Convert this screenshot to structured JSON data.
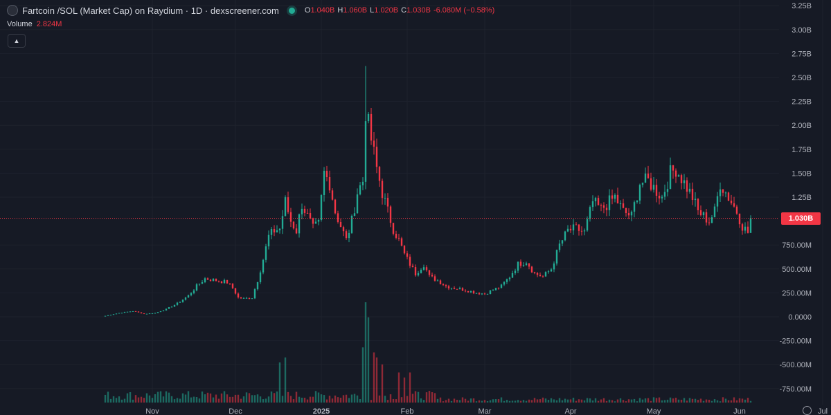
{
  "legend": {
    "title": "Fartcoin /SOL (Market Cap) on Raydium · 1D · dexscreener.com",
    "open_key": "O",
    "open": "1.040B",
    "high_key": "H",
    "high": "1.060B",
    "low_key": "L",
    "low": "1.020B",
    "close_key": "C",
    "close": "1.030B",
    "change": "-6.080M (−0.58%)"
  },
  "volume": {
    "label": "Volume",
    "value": "2.824M"
  },
  "collapse_icon": "chevron-up-icon",
  "last_price_label": "1.030B",
  "colors": {
    "up": "#22ab94",
    "down": "#f23645",
    "background": "#161a25",
    "axis_text": "#b2b5be",
    "grid": "#1e222d"
  },
  "chart_data": {
    "type": "candlestick",
    "y_tick_labels": [
      "3.25B",
      "3.00B",
      "2.75B",
      "2.50B",
      "2.25B",
      "2.00B",
      "1.75B",
      "1.50B",
      "1.25B",
      "1.030B",
      "750.00M",
      "500.00M",
      "250.00M",
      "0.0000",
      "-250.00M",
      "-500.00M",
      "-750.00M"
    ],
    "y_tick_values": [
      3.25,
      3.0,
      2.75,
      2.5,
      2.25,
      2.0,
      1.75,
      1.5,
      1.25,
      null,
      0.75,
      0.5,
      0.25,
      0,
      -0.25,
      -0.5,
      -0.75
    ],
    "x_tick_labels": [
      "Nov",
      "Dec",
      "2025",
      "Feb",
      "Mar",
      "Apr",
      "May",
      "Jun",
      "Jul"
    ],
    "x_tick_day_index": [
      17,
      47,
      78,
      109,
      137,
      168,
      198,
      229,
      259
    ],
    "ylim_billions": [
      -0.85,
      3.3
    ],
    "last_price": 1.03,
    "price_scale": "billions of USD market cap",
    "close_anchors_billions": [
      [
        0,
        0.01
      ],
      [
        5,
        0.04
      ],
      [
        10,
        0.06
      ],
      [
        14,
        0.03
      ],
      [
        18,
        0.04
      ],
      [
        22,
        0.08
      ],
      [
        26,
        0.14
      ],
      [
        30,
        0.22
      ],
      [
        33,
        0.32
      ],
      [
        36,
        0.4
      ],
      [
        40,
        0.38
      ],
      [
        44,
        0.36
      ],
      [
        46,
        0.3
      ],
      [
        48,
        0.2
      ],
      [
        50,
        0.19
      ],
      [
        53,
        0.2
      ],
      [
        55,
        0.38
      ],
      [
        57,
        0.6
      ],
      [
        59,
        0.84
      ],
      [
        61,
        0.9
      ],
      [
        63,
        0.92
      ],
      [
        65,
        1.2
      ],
      [
        67,
        1.0
      ],
      [
        69,
        0.9
      ],
      [
        71,
        1.18
      ],
      [
        73,
        1.05
      ],
      [
        75,
        0.92
      ],
      [
        77,
        0.97
      ],
      [
        79,
        1.5
      ],
      [
        81,
        1.4
      ],
      [
        83,
        1.1
      ],
      [
        85,
        0.95
      ],
      [
        87,
        0.8
      ],
      [
        89,
        1.0
      ],
      [
        91,
        1.3
      ],
      [
        93,
        1.42
      ],
      [
        94,
        2.15
      ],
      [
        96,
        1.85
      ],
      [
        98,
        1.55
      ],
      [
        100,
        1.3
      ],
      [
        102,
        1.1
      ],
      [
        104,
        0.92
      ],
      [
        106,
        0.8
      ],
      [
        108,
        0.65
      ],
      [
        110,
        0.55
      ],
      [
        112,
        0.45
      ],
      [
        115,
        0.55
      ],
      [
        117,
        0.42
      ],
      [
        120,
        0.38
      ],
      [
        123,
        0.32
      ],
      [
        126,
        0.3
      ],
      [
        130,
        0.28
      ],
      [
        134,
        0.25
      ],
      [
        137,
        0.24
      ],
      [
        140,
        0.28
      ],
      [
        143,
        0.32
      ],
      [
        146,
        0.42
      ],
      [
        149,
        0.55
      ],
      [
        152,
        0.58
      ],
      [
        155,
        0.45
      ],
      [
        158,
        0.42
      ],
      [
        161,
        0.5
      ],
      [
        164,
        0.75
      ],
      [
        167,
        0.9
      ],
      [
        170,
        0.92
      ],
      [
        173,
        0.88
      ],
      [
        176,
        1.2
      ],
      [
        179,
        1.12
      ],
      [
        182,
        1.2
      ],
      [
        184,
        1.25
      ],
      [
        187,
        1.1
      ],
      [
        190,
        1.05
      ],
      [
        193,
        1.4
      ],
      [
        196,
        1.42
      ],
      [
        198,
        1.35
      ],
      [
        201,
        1.25
      ],
      [
        204,
        1.5
      ],
      [
        206,
        1.55
      ],
      [
        208,
        1.45
      ],
      [
        210,
        1.35
      ],
      [
        212,
        1.25
      ],
      [
        214,
        1.1
      ],
      [
        216,
        1.05
      ],
      [
        218,
        1.0
      ],
      [
        220,
        1.1
      ],
      [
        222,
        1.4
      ],
      [
        224,
        1.3
      ],
      [
        226,
        1.2
      ],
      [
        228,
        1.1
      ],
      [
        230,
        0.95
      ],
      [
        232,
        0.88
      ],
      [
        233,
        1.03
      ]
    ],
    "volume_spikes_fraction_of_max": [
      [
        63,
        0.4
      ],
      [
        65,
        0.45
      ],
      [
        93,
        0.55
      ],
      [
        94,
        1.0
      ],
      [
        95,
        0.85
      ],
      [
        97,
        0.5
      ],
      [
        98,
        0.45
      ],
      [
        100,
        0.38
      ],
      [
        106,
        0.3
      ],
      [
        108,
        0.25
      ],
      [
        110,
        0.3
      ]
    ]
  }
}
